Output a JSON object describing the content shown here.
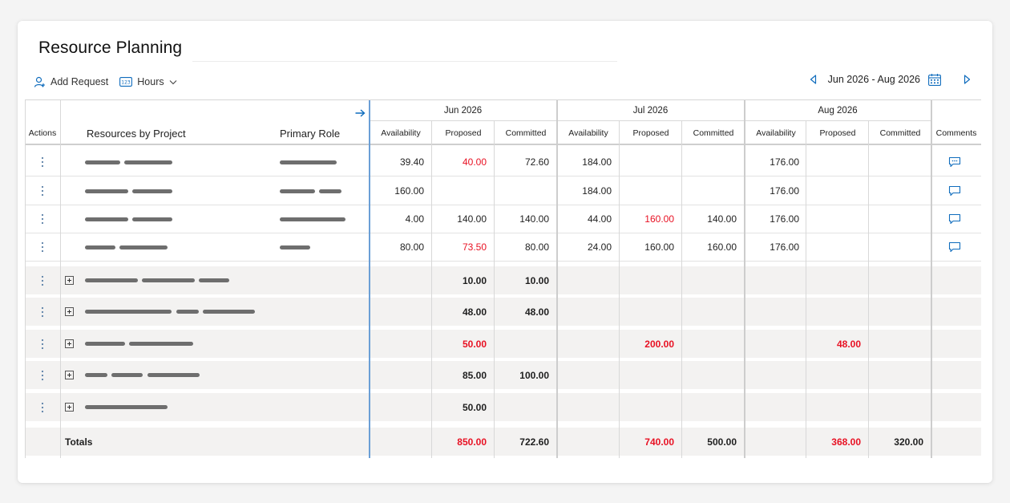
{
  "page": {
    "title": "Resource Planning"
  },
  "toolbar": {
    "add_request": "Add Request",
    "hours": "Hours"
  },
  "date_nav": {
    "range": "Jun 2026 - Aug 2026"
  },
  "header": {
    "actions": "Actions",
    "resources_by_project": "Resources by Project",
    "primary_role": "Primary Role",
    "comments": "Comments",
    "months": [
      "Jun 2026",
      "Jul 2026",
      "Aug 2026"
    ],
    "subcols": [
      "Availability",
      "Proposed",
      "Committed"
    ]
  },
  "resource_rows": [
    {
      "values": [
        "39.40",
        "40.00",
        "72.60",
        "184.00",
        "",
        "",
        "176.00",
        "",
        ""
      ],
      "red": [
        1
      ]
    },
    {
      "values": [
        "160.00",
        "",
        "",
        "184.00",
        "",
        "",
        "176.00",
        "",
        ""
      ],
      "red": []
    },
    {
      "values": [
        "4.00",
        "140.00",
        "140.00",
        "44.00",
        "160.00",
        "140.00",
        "176.00",
        "",
        ""
      ],
      "red": [
        4
      ]
    },
    {
      "values": [
        "80.00",
        "73.50",
        "80.00",
        "24.00",
        "160.00",
        "160.00",
        "176.00",
        "",
        ""
      ],
      "red": [
        1
      ]
    }
  ],
  "project_rows": [
    {
      "values": [
        "",
        "10.00",
        "10.00",
        "",
        "",
        "",
        "",
        "",
        ""
      ],
      "red": []
    },
    {
      "values": [
        "",
        "48.00",
        "48.00",
        "",
        "",
        "",
        "",
        "",
        ""
      ],
      "red": []
    },
    {
      "values": [
        "",
        "50.00",
        "",
        "",
        "200.00",
        "",
        "",
        "48.00",
        ""
      ],
      "red": [
        1,
        4,
        7
      ]
    },
    {
      "values": [
        "",
        "85.00",
        "100.00",
        "",
        "",
        "",
        "",
        "",
        ""
      ],
      "red": []
    },
    {
      "values": [
        "",
        "50.00",
        "",
        "",
        "",
        "",
        "",
        "",
        ""
      ],
      "red": []
    }
  ],
  "totals": {
    "label": "Totals",
    "values": [
      "",
      "850.00",
      "722.60",
      "",
      "740.00",
      "500.00",
      "",
      "368.00",
      "320.00"
    ],
    "red": [
      1,
      4,
      7
    ]
  },
  "colors": {
    "accent": "#0f6cbd",
    "negative": "#e81123"
  }
}
